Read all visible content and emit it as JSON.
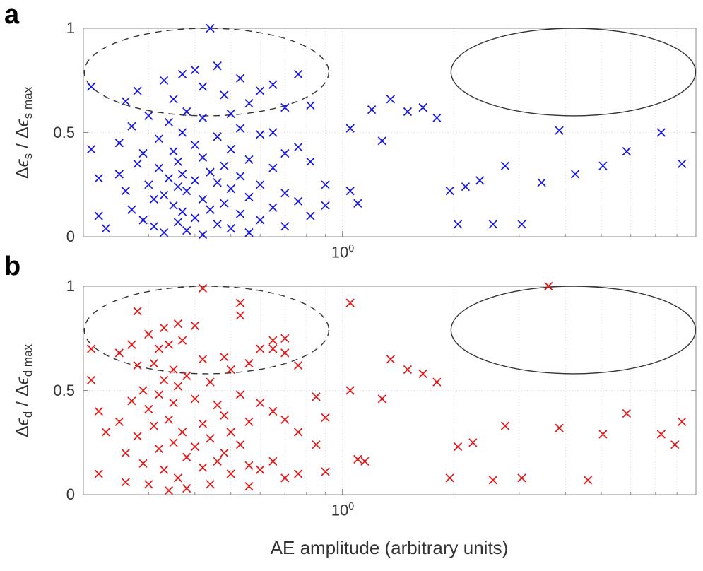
{
  "figure": {
    "xlabel": "AE amplitude (arbitrary units)",
    "x_tick": {
      "base": "10",
      "exp": "0"
    },
    "y_ticks": [
      "1",
      "0.5",
      "0"
    ]
  },
  "panels": [
    {
      "letter": "a",
      "ylabel": {
        "d1": "Δ",
        "e1": "ϵ",
        "s1": "s",
        "slash": " / ",
        "d2": "Δ",
        "e2": "ϵ",
        "s2": "s max"
      }
    },
    {
      "letter": "b",
      "ylabel": {
        "d1": "Δ",
        "e1": "ϵ",
        "s1": "d",
        "slash": " / ",
        "d2": "Δ",
        "e2": "ϵ",
        "s2": "d max"
      }
    }
  ],
  "chart_data": [
    {
      "type": "scatter",
      "title": "",
      "marker": "x",
      "color": "#1414e6",
      "xscale": "log",
      "xlim": [
        0.2,
        9
      ],
      "ylim": [
        0,
        1
      ],
      "x_major_tick": 1,
      "x_tick_label": "10^0",
      "x_minor_gridlines": [
        0.3,
        0.4,
        0.5,
        0.6,
        0.7,
        0.8,
        0.9,
        2,
        3,
        4,
        5,
        6,
        7,
        8
      ],
      "y_gridlines": [
        0.5
      ],
      "ylabel": "Delta epsilon_s / Delta epsilon_s,max",
      "ellipses": [
        {
          "cx": 0.43,
          "cy": 0.79,
          "rx_decades": 0.33,
          "ry": 0.21,
          "style": "dashed"
        },
        {
          "cx": 4.2,
          "cy": 0.79,
          "rx_decades": 0.33,
          "ry": 0.21,
          "style": "solid"
        }
      ],
      "points": [
        [
          0.21,
          0.72
        ],
        [
          0.21,
          0.42
        ],
        [
          0.22,
          0.28
        ],
        [
          0.22,
          0.1
        ],
        [
          0.23,
          0.04
        ],
        [
          0.25,
          0.45
        ],
        [
          0.25,
          0.3
        ],
        [
          0.26,
          0.65
        ],
        [
          0.26,
          0.22
        ],
        [
          0.27,
          0.53
        ],
        [
          0.27,
          0.13
        ],
        [
          0.28,
          0.7
        ],
        [
          0.28,
          0.35
        ],
        [
          0.29,
          0.4
        ],
        [
          0.29,
          0.08
        ],
        [
          0.3,
          0.58
        ],
        [
          0.3,
          0.25
        ],
        [
          0.31,
          0.18
        ],
        [
          0.31,
          0.05
        ],
        [
          0.32,
          0.47
        ],
        [
          0.32,
          0.33
        ],
        [
          0.33,
          0.75
        ],
        [
          0.33,
          0.2
        ],
        [
          0.33,
          0.02
        ],
        [
          0.34,
          0.55
        ],
        [
          0.34,
          0.28
        ],
        [
          0.35,
          0.66
        ],
        [
          0.35,
          0.41
        ],
        [
          0.35,
          0.15
        ],
        [
          0.36,
          0.36
        ],
        [
          0.36,
          0.24
        ],
        [
          0.36,
          0.07
        ],
        [
          0.37,
          0.78
        ],
        [
          0.37,
          0.5
        ],
        [
          0.37,
          0.3
        ],
        [
          0.37,
          0.12
        ],
        [
          0.38,
          0.6
        ],
        [
          0.38,
          0.22
        ],
        [
          0.38,
          0.03
        ],
        [
          0.4,
          0.8
        ],
        [
          0.4,
          0.44
        ],
        [
          0.4,
          0.27
        ],
        [
          0.4,
          0.09
        ],
        [
          0.42,
          0.72
        ],
        [
          0.42,
          0.57
        ],
        [
          0.42,
          0.38
        ],
        [
          0.42,
          0.18
        ],
        [
          0.42,
          0.01
        ],
        [
          0.44,
          1.0
        ],
        [
          0.44,
          0.31
        ],
        [
          0.44,
          0.13
        ],
        [
          0.46,
          0.82
        ],
        [
          0.46,
          0.48
        ],
        [
          0.46,
          0.26
        ],
        [
          0.46,
          0.06
        ],
        [
          0.48,
          0.68
        ],
        [
          0.48,
          0.34
        ],
        [
          0.48,
          0.16
        ],
        [
          0.5,
          0.59
        ],
        [
          0.5,
          0.42
        ],
        [
          0.5,
          0.23
        ],
        [
          0.5,
          0.04
        ],
        [
          0.53,
          0.76
        ],
        [
          0.53,
          0.52
        ],
        [
          0.53,
          0.29
        ],
        [
          0.53,
          0.11
        ],
        [
          0.56,
          0.64
        ],
        [
          0.56,
          0.37
        ],
        [
          0.56,
          0.19
        ],
        [
          0.56,
          0.02
        ],
        [
          0.6,
          0.7
        ],
        [
          0.6,
          0.49
        ],
        [
          0.6,
          0.25
        ],
        [
          0.6,
          0.08
        ],
        [
          0.65,
          0.73
        ],
        [
          0.65,
          0.5
        ],
        [
          0.65,
          0.33
        ],
        [
          0.65,
          0.14
        ],
        [
          0.7,
          0.62
        ],
        [
          0.7,
          0.4
        ],
        [
          0.7,
          0.21
        ],
        [
          0.7,
          0.05
        ],
        [
          0.76,
          0.78
        ],
        [
          0.76,
          0.43
        ],
        [
          0.76,
          0.17
        ],
        [
          0.82,
          0.63
        ],
        [
          0.82,
          0.36
        ],
        [
          0.82,
          0.1
        ],
        [
          0.9,
          0.25
        ],
        [
          0.9,
          0.15
        ],
        [
          1.05,
          0.52
        ],
        [
          1.05,
          0.22
        ],
        [
          1.1,
          0.16
        ],
        [
          1.2,
          0.61
        ],
        [
          1.28,
          0.46
        ],
        [
          1.35,
          0.66
        ],
        [
          1.5,
          0.6
        ],
        [
          1.65,
          0.62
        ],
        [
          1.8,
          0.57
        ],
        [
          1.95,
          0.22
        ],
        [
          2.05,
          0.06
        ],
        [
          2.15,
          0.24
        ],
        [
          2.35,
          0.27
        ],
        [
          2.55,
          0.06
        ],
        [
          2.75,
          0.34
        ],
        [
          3.05,
          0.06
        ],
        [
          3.45,
          0.26
        ],
        [
          3.85,
          0.51
        ],
        [
          4.25,
          0.3
        ],
        [
          5.05,
          0.34
        ],
        [
          5.85,
          0.41
        ],
        [
          7.25,
          0.5
        ],
        [
          8.25,
          0.35
        ]
      ]
    },
    {
      "type": "scatter",
      "title": "",
      "marker": "x",
      "color": "#e81414",
      "xscale": "log",
      "xlim": [
        0.2,
        9
      ],
      "ylim": [
        0,
        1
      ],
      "x_major_tick": 1,
      "x_tick_label": "10^0",
      "x_minor_gridlines": [
        0.3,
        0.4,
        0.5,
        0.6,
        0.7,
        0.8,
        0.9,
        2,
        3,
        4,
        5,
        6,
        7,
        8
      ],
      "y_gridlines": [
        0.5
      ],
      "xlabel": "AE amplitude (arbitrary units)",
      "ylabel": "Delta epsilon_d / Delta epsilon_d,max",
      "ellipses": [
        {
          "cx": 0.43,
          "cy": 0.79,
          "rx_decades": 0.33,
          "ry": 0.21,
          "style": "dashed"
        },
        {
          "cx": 4.2,
          "cy": 0.79,
          "rx_decades": 0.33,
          "ry": 0.21,
          "style": "solid"
        }
      ],
      "points": [
        [
          0.21,
          0.7
        ],
        [
          0.21,
          0.55
        ],
        [
          0.22,
          0.4
        ],
        [
          0.22,
          0.1
        ],
        [
          0.23,
          0.3
        ],
        [
          0.25,
          0.68
        ],
        [
          0.25,
          0.35
        ],
        [
          0.26,
          0.2
        ],
        [
          0.26,
          0.06
        ],
        [
          0.27,
          0.72
        ],
        [
          0.27,
          0.45
        ],
        [
          0.28,
          0.88
        ],
        [
          0.28,
          0.62
        ],
        [
          0.28,
          0.28
        ],
        [
          0.29,
          0.5
        ],
        [
          0.29,
          0.15
        ],
        [
          0.3,
          0.77
        ],
        [
          0.3,
          0.41
        ],
        [
          0.3,
          0.05
        ],
        [
          0.31,
          0.63
        ],
        [
          0.31,
          0.33
        ],
        [
          0.32,
          0.7
        ],
        [
          0.32,
          0.48
        ],
        [
          0.32,
          0.22
        ],
        [
          0.33,
          0.8
        ],
        [
          0.33,
          0.55
        ],
        [
          0.33,
          0.12
        ],
        [
          0.34,
          0.72
        ],
        [
          0.34,
          0.36
        ],
        [
          0.34,
          0.02
        ],
        [
          0.35,
          0.6
        ],
        [
          0.35,
          0.44
        ],
        [
          0.35,
          0.25
        ],
        [
          0.36,
          0.82
        ],
        [
          0.36,
          0.52
        ],
        [
          0.36,
          0.08
        ],
        [
          0.37,
          0.74
        ],
        [
          0.37,
          0.3
        ],
        [
          0.38,
          0.57
        ],
        [
          0.38,
          0.18
        ],
        [
          0.38,
          0.03
        ],
        [
          0.4,
          0.81
        ],
        [
          0.4,
          0.46
        ],
        [
          0.4,
          0.23
        ],
        [
          0.42,
          0.99
        ],
        [
          0.42,
          0.65
        ],
        [
          0.42,
          0.34
        ],
        [
          0.42,
          0.13
        ],
        [
          0.44,
          0.54
        ],
        [
          0.44,
          0.27
        ],
        [
          0.44,
          0.05
        ],
        [
          0.46,
          0.43
        ],
        [
          0.46,
          0.16
        ],
        [
          0.48,
          0.66
        ],
        [
          0.48,
          0.38
        ],
        [
          0.48,
          0.2
        ],
        [
          0.5,
          0.6
        ],
        [
          0.5,
          0.3
        ],
        [
          0.5,
          0.1
        ],
        [
          0.53,
          0.92
        ],
        [
          0.53,
          0.86
        ],
        [
          0.53,
          0.48
        ],
        [
          0.53,
          0.24
        ],
        [
          0.56,
          0.63
        ],
        [
          0.56,
          0.35
        ],
        [
          0.56,
          0.14
        ],
        [
          0.56,
          0.04
        ],
        [
          0.6,
          0.7
        ],
        [
          0.6,
          0.44
        ],
        [
          0.6,
          0.12
        ],
        [
          0.65,
          0.74
        ],
        [
          0.65,
          0.7
        ],
        [
          0.65,
          0.4
        ],
        [
          0.65,
          0.16
        ],
        [
          0.7,
          0.75
        ],
        [
          0.7,
          0.68
        ],
        [
          0.7,
          0.36
        ],
        [
          0.7,
          0.08
        ],
        [
          0.76,
          0.62
        ],
        [
          0.76,
          0.3
        ],
        [
          0.76,
          0.1
        ],
        [
          0.85,
          0.47
        ],
        [
          0.85,
          0.24
        ],
        [
          0.9,
          0.37
        ],
        [
          0.9,
          0.11
        ],
        [
          1.05,
          0.92
        ],
        [
          1.05,
          0.5
        ],
        [
          1.1,
          0.17
        ],
        [
          1.15,
          0.16
        ],
        [
          1.28,
          0.46
        ],
        [
          1.35,
          0.65
        ],
        [
          1.5,
          0.6
        ],
        [
          1.65,
          0.58
        ],
        [
          1.8,
          0.54
        ],
        [
          1.95,
          0.08
        ],
        [
          2.05,
          0.23
        ],
        [
          2.25,
          0.25
        ],
        [
          2.55,
          0.07
        ],
        [
          2.75,
          0.33
        ],
        [
          3.05,
          0.08
        ],
        [
          3.6,
          1.0
        ],
        [
          3.85,
          0.32
        ],
        [
          4.6,
          0.07
        ],
        [
          5.05,
          0.29
        ],
        [
          5.85,
          0.39
        ],
        [
          7.25,
          0.29
        ],
        [
          7.9,
          0.24
        ],
        [
          8.25,
          0.35
        ]
      ]
    }
  ]
}
